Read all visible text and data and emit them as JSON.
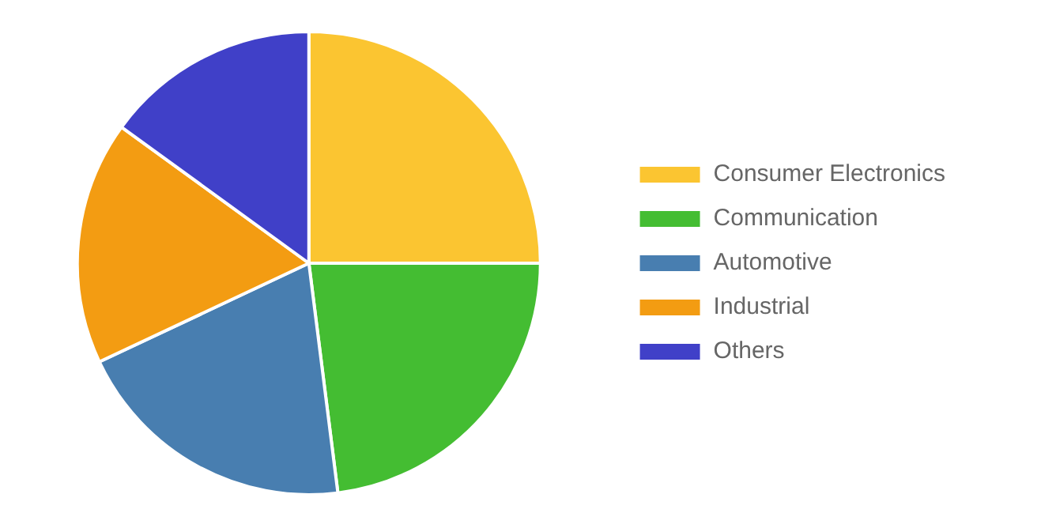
{
  "chart_data": {
    "type": "pie",
    "categories": [
      "Consumer Electronics",
      "Communication",
      "Automotive",
      "Industrial",
      "Others"
    ],
    "values": [
      25,
      23,
      20,
      17,
      15
    ],
    "colors": [
      "#fbc531",
      "#44bd32",
      "#487eb0",
      "#f39c12",
      "#4040c8"
    ],
    "legend": "right"
  }
}
